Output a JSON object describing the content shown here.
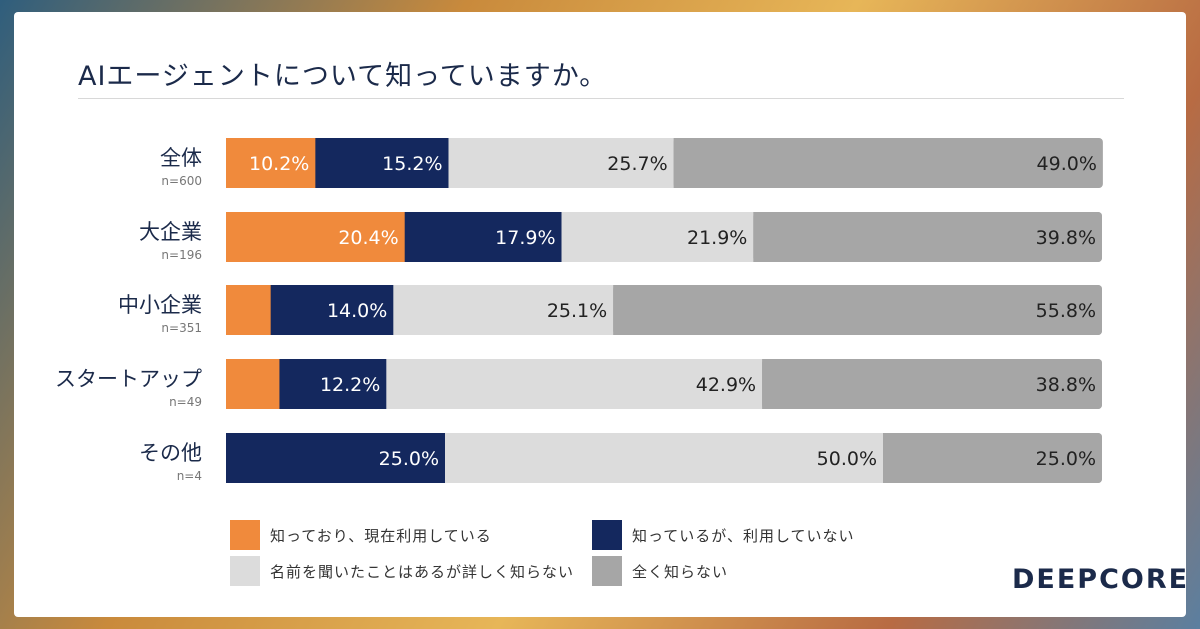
{
  "chart_data": {
    "type": "bar",
    "orientation": "horizontal",
    "stacked": true,
    "title": "AIエージェントについて知っていますか。",
    "categories": [
      "全体",
      "大企業",
      "中小企業",
      "スタートアップ",
      "その他"
    ],
    "sample_sizes": [
      "n=600",
      "n=196",
      "n=351",
      "n=49",
      "n=4"
    ],
    "xlim": [
      0,
      100
    ],
    "grid": false,
    "legend_position": "bottom",
    "series": [
      {
        "name": "知っており、現在利用している",
        "color": "#f08a3c",
        "values": [
          10.2,
          20.4,
          5.1,
          6.1,
          0.0
        ],
        "labels": [
          "10.2%",
          "20.4%",
          "",
          "",
          ""
        ]
      },
      {
        "name": "知っているが、利用していない",
        "color": "#14285e",
        "values": [
          15.2,
          17.9,
          14.0,
          12.2,
          25.0
        ],
        "labels": [
          "15.2%",
          "17.9%",
          "14.0%",
          "12.2%",
          "25.0%"
        ]
      },
      {
        "name": "名前を聞いたことはあるが詳しく知らない",
        "color": "#dcdcdc",
        "values": [
          25.7,
          21.9,
          25.1,
          42.9,
          50.0
        ],
        "labels": [
          "25.7%",
          "21.9%",
          "25.1%",
          "42.9%",
          "50.0%"
        ]
      },
      {
        "name": "全く知らない",
        "color": "#a6a6a6",
        "values": [
          49.0,
          39.8,
          55.8,
          38.8,
          25.0
        ],
        "labels": [
          "49.0%",
          "39.8%",
          "55.8%",
          "38.8%",
          "25.0%"
        ]
      }
    ]
  },
  "brand": {
    "logo_text": "DEEPCORE"
  }
}
